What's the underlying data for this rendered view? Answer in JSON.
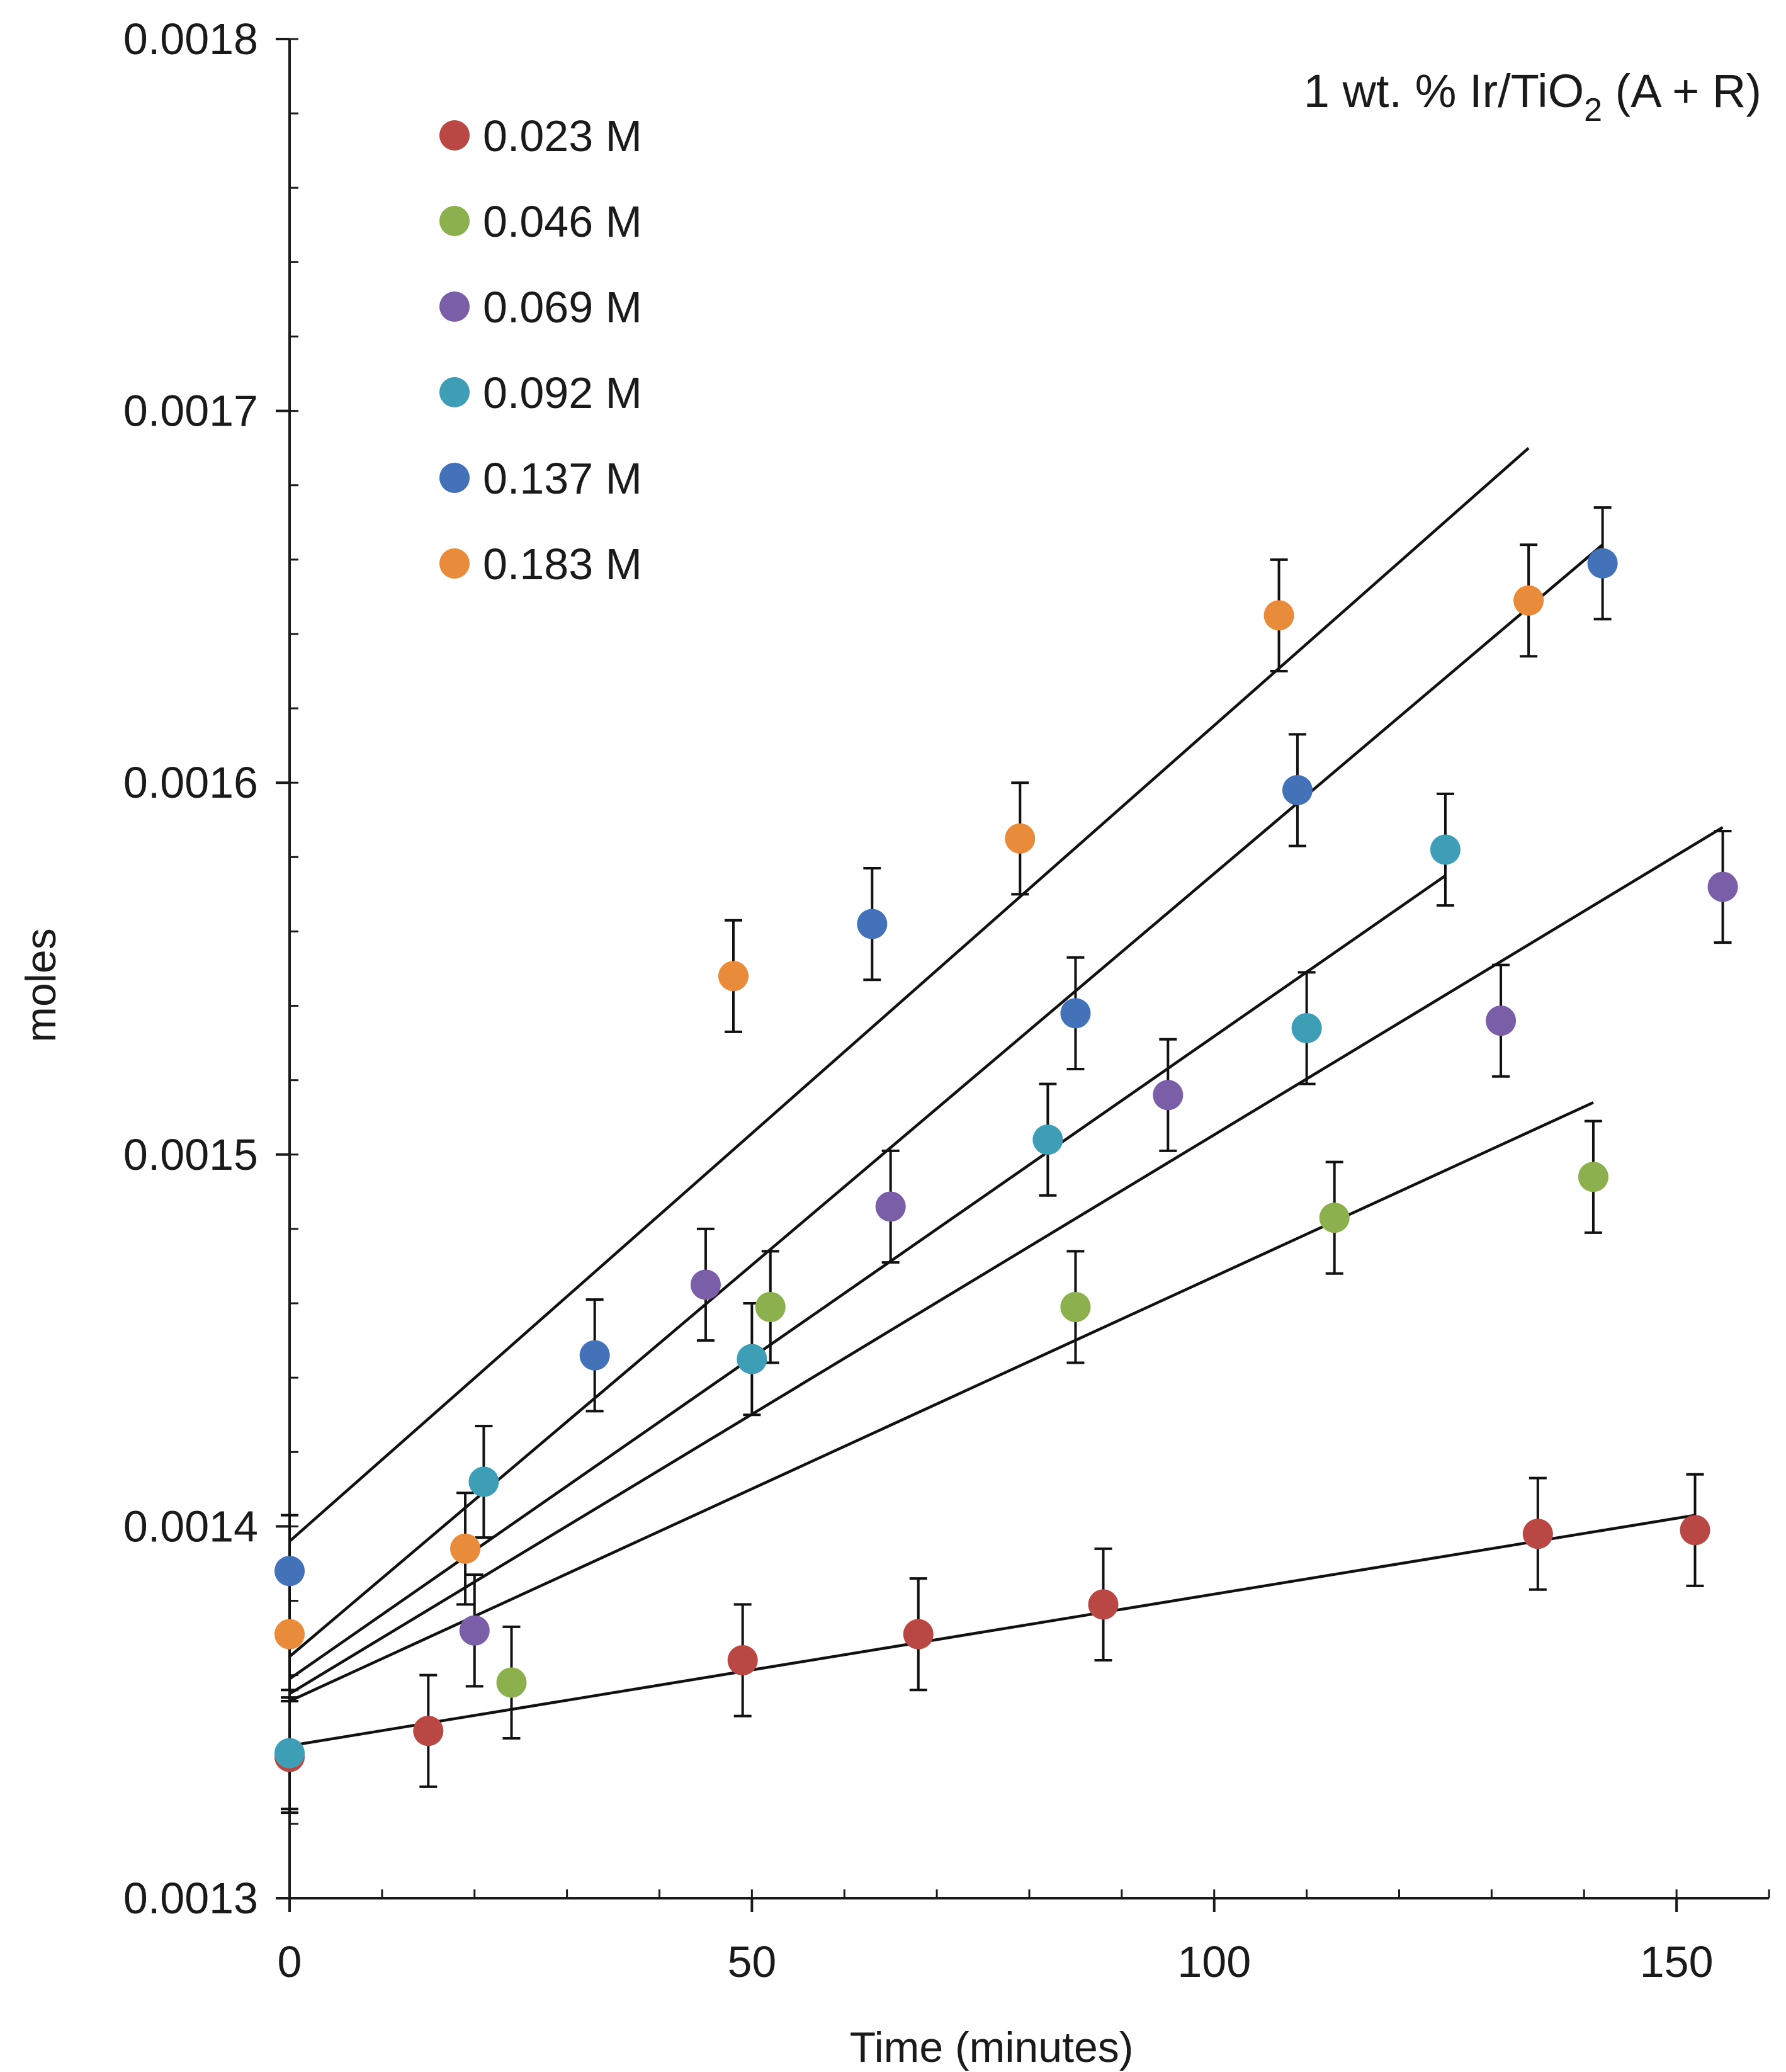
{
  "chart_data": {
    "type": "scatter",
    "title": "1 wt. % Ir/TiO",
    "title_subscript": "2",
    "title_suffix": " (A + R)",
    "xlabel": "Time (minutes)",
    "ylabel": "moles",
    "xlim": [
      0,
      160
    ],
    "ylim": [
      0.0013,
      0.0018
    ],
    "x_ticks": [
      {
        "value": 0,
        "label": "0"
      },
      {
        "value": 50,
        "label": "50"
      },
      {
        "value": 100,
        "label": "100"
      },
      {
        "value": 150,
        "label": "150"
      }
    ],
    "y_ticks": [
      {
        "value": 0.0013,
        "label": "0.0013"
      },
      {
        "value": 0.0014,
        "label": "0.0014"
      },
      {
        "value": 0.0015,
        "label": "0.0015"
      },
      {
        "value": 0.0016,
        "label": "0.0016"
      },
      {
        "value": 0.0017,
        "label": "0.0017"
      },
      {
        "value": 0.0018,
        "label": "0.0018"
      }
    ],
    "x_minor_step": 10,
    "y_minor_step": 2e-05,
    "grid": false,
    "legend_position": "top-left",
    "error_bar": 1.5e-05,
    "series": [
      {
        "name": "0.023 M",
        "color": "#b94744",
        "x": [
          0,
          15,
          49,
          68,
          88,
          135,
          152
        ],
        "y": [
          0.001338,
          0.001345,
          0.001364,
          0.001371,
          0.001379,
          0.001398,
          0.001399
        ],
        "fit": {
          "x": [
            0,
            152
          ],
          "y": [
            0.001341,
            0.001403
          ]
        }
      },
      {
        "name": "0.046 M",
        "color": "#8db04e",
        "x": [
          24,
          52,
          85,
          113,
          141
        ],
        "y": [
          0.001358,
          0.001459,
          0.001459,
          0.001483,
          0.001494
        ],
        "fit": {
          "x": [
            0,
            141
          ],
          "y": [
            0.001353,
            0.001514
          ]
        }
      },
      {
        "name": "0.069 M",
        "color": "#7a5ea7",
        "x": [
          20,
          45,
          65,
          95,
          131,
          155
        ],
        "y": [
          0.001372,
          0.001465,
          0.001486,
          0.001516,
          0.001536,
          0.001572
        ],
        "fit": {
          "x": [
            0,
            155
          ],
          "y": [
            0.001355,
            0.001588
          ]
        }
      },
      {
        "name": "0.092 M",
        "color": "#3d9eb6",
        "x": [
          0,
          21,
          50,
          82,
          110,
          125
        ],
        "y": [
          0.001339,
          0.001412,
          0.001445,
          0.001504,
          0.001534,
          0.001582
        ],
        "fit": {
          "x": [
            0,
            125
          ],
          "y": [
            0.001359,
            0.001575
          ]
        }
      },
      {
        "name": "0.137 M",
        "color": "#4472b8",
        "x": [
          0,
          33,
          63,
          85,
          109,
          142
        ],
        "y": [
          0.001388,
          0.001446,
          0.001562,
          0.001538,
          0.001598,
          0.001659
        ],
        "fit": {
          "x": [
            0,
            142
          ],
          "y": [
            0.001365,
            0.001664
          ]
        }
      },
      {
        "name": "0.183 M",
        "color": "#e88b3a",
        "x": [
          0,
          19,
          48,
          79,
          107,
          134
        ],
        "y": [
          0.001371,
          0.001394,
          0.001548,
          0.001585,
          0.001645,
          0.001649
        ],
        "fit": {
          "x": [
            0,
            134
          ],
          "y": [
            0.001396,
            0.00169
          ]
        }
      }
    ]
  }
}
